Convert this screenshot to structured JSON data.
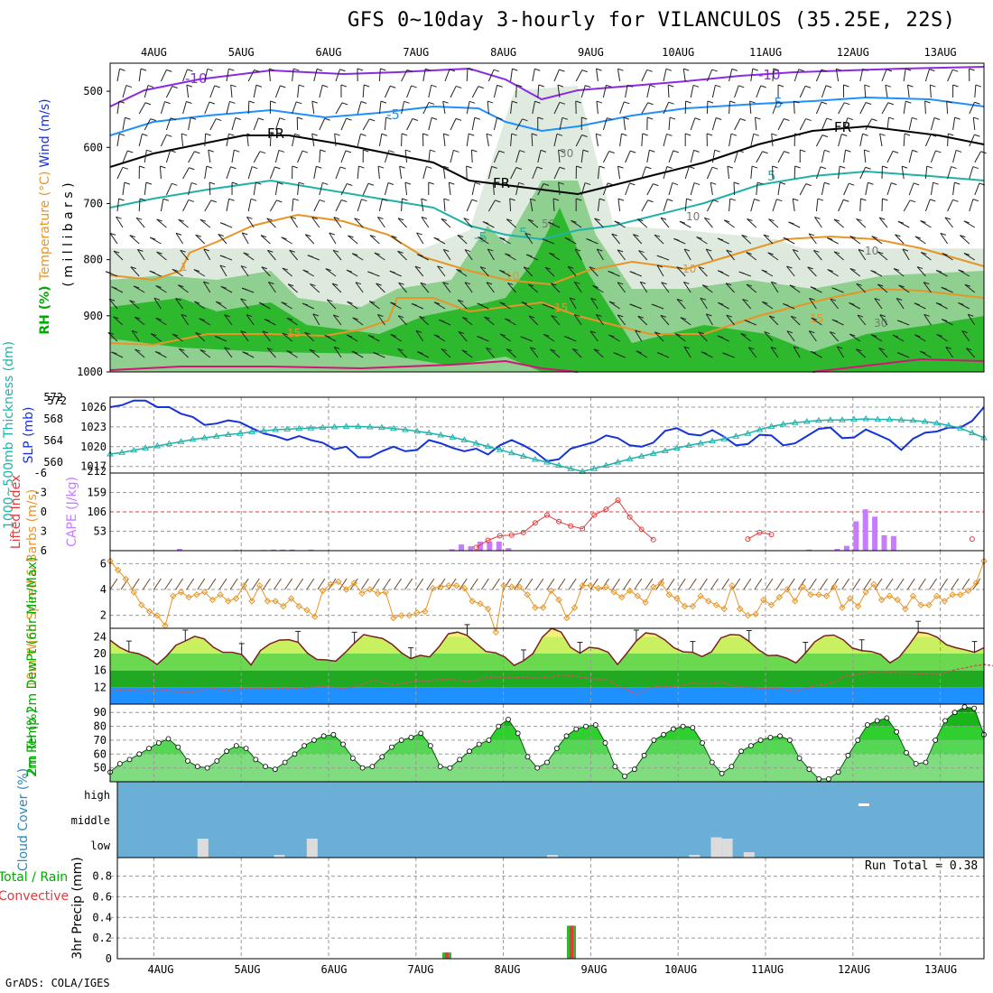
{
  "title": "GFS 0~10day 3-hourly for VILANCULOS (35.25E, 22S)",
  "credit": "GrADS: COLA/IGES",
  "run_total": "Run Total = 0.38",
  "colors": {
    "rh_dark": "#2eb82e",
    "rh_mid": "#8fcf8f",
    "rh_light": "#dde9dd",
    "temp_purple": "#8a2be2",
    "temp_blue": "#1e90ff",
    "temp_teal": "#20b2aa",
    "temp_orange": "#e69526",
    "temp_magenta": "#d4147a",
    "slp": "#1533d6",
    "thickness": "#20b2aa",
    "cape": "#c77bff",
    "lifted": "#e23b3b",
    "wind10": "#e69526",
    "cloud_bg": "#6baed6",
    "cloud_bar": "#dcdcdc"
  },
  "chart_data": [
    {
      "panel": "upper-air",
      "type": "heatmap",
      "x_ticks": [
        "4AUG",
        "5AUG",
        "6AUG",
        "7AUG",
        "8AUG",
        "9AUG",
        "10AUG",
        "11AUG",
        "12AUG",
        "13AUG"
      ],
      "ylabel_parts": [
        "RH (%)",
        "Temperature (°C)",
        "Wind (m/s)"
      ],
      "ylabel2": "( m i l l i b a r s )",
      "y_ticks": [
        "500",
        "600",
        "700",
        "800",
        "900",
        "1000"
      ],
      "contour_labels": [
        "-10",
        "-10",
        "-5",
        "-5",
        "FR",
        "FR",
        "FR",
        "-5",
        "5",
        "5",
        "10",
        "10",
        "15",
        "15",
        "15",
        "1",
        "30",
        "50",
        "10",
        "10",
        "30"
      ]
    },
    {
      "panel": "pressure",
      "type": "line",
      "ylabel_left": "1000~500mb Thickness (dm)",
      "ylabel_right": "SLP (mb)",
      "y_ticks_left": [
        "572",
        "568",
        "564",
        "560"
      ],
      "y_ticks_right": [
        "1026",
        "1023",
        "1020",
        "1017"
      ],
      "thickness_ylim": [
        558,
        572
      ],
      "slp_ylim": [
        1016,
        1027.5
      ],
      "slp": [
        1026,
        1026.3,
        1027,
        1027,
        1026,
        1026,
        1025,
        1024.5,
        1023.3,
        1023.5,
        1024,
        1023.7,
        1022.8,
        1022,
        1021.6,
        1021,
        1021.6,
        1021,
        1020.6,
        1019.6,
        1020,
        1018.4,
        1018.4,
        1019.3,
        1020,
        1019.3,
        1019.5,
        1021,
        1020.5,
        1019.8,
        1019.3,
        1019.7,
        1018.8,
        1020.2,
        1021,
        1020.2,
        1019.2,
        1017.8,
        1018.1,
        1019.7,
        1020.2,
        1020.7,
        1021.7,
        1021.3,
        1020.2,
        1020,
        1020.6,
        1022.4,
        1022.8,
        1021.9,
        1021.7,
        1022.5,
        1021.5,
        1020.2,
        1020.4,
        1021.8,
        1021.7,
        1020.2,
        1020.5,
        1021.6,
        1022.7,
        1022.9,
        1021.3,
        1021.4,
        1022.6,
        1021.8,
        1021,
        1019.5,
        1021.2,
        1022.1,
        1022.3,
        1022.9,
        1022.9,
        1023.9,
        1026
      ],
      "thickness": [
        561.5,
        561.8,
        562.2,
        562.6,
        563,
        563.4,
        563.8,
        564.2,
        564.5,
        564.8,
        565.1,
        565.3,
        565.6,
        565.8,
        566,
        566.1,
        566.2,
        566.3,
        566.4,
        566.5,
        566.6,
        566.6,
        566.5,
        566.4,
        566.2,
        566,
        565.7,
        565.4,
        565,
        564.6,
        564.1,
        563.5,
        562.9,
        562.3,
        561.7,
        561.1,
        560.5,
        560,
        559.4,
        558.8,
        558.3,
        558.8,
        559.4,
        560,
        560.6,
        561.1,
        561.6,
        562.1,
        562.6,
        563.1,
        563.5,
        563.9,
        564.3,
        564.8,
        565.3,
        566,
        566.6,
        567,
        567.3,
        567.5,
        567.7,
        567.8,
        567.8,
        567.9,
        568,
        567.9,
        567.9,
        567.8,
        567.7,
        567.5,
        567.2,
        566.8,
        566.3,
        565.4,
        564.5
      ]
    },
    {
      "panel": "stability",
      "type": "bar",
      "ylabel_left": "Lifted Index",
      "ylabel_right": "CAPE (J/kg)",
      "y_ticks_left": [
        "-6",
        "-3",
        "0",
        "3",
        "6"
      ],
      "y_ticks_right": [
        "159",
        "106",
        "53"
      ],
      "cape_ylim": [
        0,
        212
      ],
      "lifted_ylim": [
        -6,
        6
      ],
      "cape": [
        0,
        0,
        0,
        0,
        0,
        0,
        0,
        5,
        0,
        0,
        0,
        0,
        0,
        2,
        0,
        0,
        2,
        3,
        3,
        3,
        1,
        3,
        0,
        0,
        0,
        0,
        0,
        0,
        0,
        0,
        0,
        0,
        0,
        1,
        0,
        0,
        4,
        17,
        12,
        25,
        25,
        25,
        7,
        0,
        0,
        0,
        0,
        0,
        0,
        0,
        0,
        0,
        0,
        0,
        0,
        0,
        0,
        0,
        0,
        0,
        0,
        0,
        0,
        0,
        0,
        0,
        0,
        0,
        0,
        0,
        0,
        0,
        0,
        0,
        3,
        1,
        0,
        5,
        13,
        80,
        113,
        93,
        42,
        40,
        0,
        0,
        0,
        0,
        0,
        0,
        0,
        0,
        0
      ],
      "lifted": [
        null,
        null,
        null,
        null,
        null,
        null,
        null,
        null,
        null,
        null,
        null,
        null,
        null,
        null,
        null,
        null,
        null,
        null,
        null,
        null,
        null,
        null,
        null,
        null,
        null,
        null,
        null,
        null,
        null,
        null,
        null,
        5.5,
        4.4,
        3.7,
        3.6,
        3.2,
        1.7,
        0.5,
        1.5,
        2.2,
        2.6,
        0.5,
        -0.4,
        -1.8,
        0.8,
        2.7,
        4.3,
        null,
        null,
        null,
        null,
        null,
        null,
        null,
        4.2,
        3.2,
        3.5,
        null,
        null,
        null,
        null,
        null,
        null,
        null,
        null,
        null,
        null,
        null,
        null,
        null,
        null,
        null,
        null,
        4.2,
        null
      ]
    },
    {
      "panel": "wind10m",
      "type": "line",
      "ylabel": "10m Wind Speed & Barbs (m/s)",
      "y_ticks": [
        "6",
        "4",
        "2"
      ],
      "ylim": [
        1,
        7
      ],
      "values": [
        6.2,
        5.5,
        4.8,
        3.8,
        2.8,
        2.3,
        2,
        1.2,
        3.5,
        3.8,
        3.4,
        3.6,
        3.8,
        3.2,
        3.6,
        3.1,
        3.3,
        4.3,
        3.1,
        4.3,
        3.1,
        3.1,
        2.7,
        3.3,
        2.7,
        2.4,
        1.9,
        3.9,
        4.4,
        4.6,
        4,
        4.5,
        3.7,
        4,
        3.7,
        3.8,
        1.8,
        2,
        2,
        2.2,
        2.3,
        4.1,
        4.2,
        4.3,
        4.3,
        4.1,
        3.1,
        2.9,
        2.5,
        0.7,
        4.3,
        4.2,
        4.2,
        3.6,
        2.6,
        2.6,
        3.9,
        3.2,
        1.8,
        2.6,
        4.3,
        4.3,
        4.1,
        4.2,
        3.8,
        3.4,
        3.9,
        3.5,
        3,
        4.2,
        4.5,
        3.6,
        3.3,
        2.7,
        2.7,
        3.5,
        3.1,
        2.8,
        2.5,
        4.3,
        2.5,
        2,
        2.1,
        3.2,
        2.8,
        3.4,
        4,
        3.1,
        4.2,
        3.6,
        3.6,
        3.5,
        4.2,
        2.6,
        3.3,
        2.7,
        3.8,
        4.4,
        3.2,
        3.5,
        3.2,
        2.5,
        3.5,
        2.8,
        2.8,
        3.5,
        3.1,
        3.6,
        3.6,
        3.9,
        4.5,
        6.2
      ]
    },
    {
      "panel": "temperature",
      "type": "area",
      "ylabel": "2m Temp 2m DewPt (6hr Min/Max)",
      "y_ticks": [
        "24",
        "20",
        "16",
        "12"
      ],
      "ylim": [
        8,
        26
      ],
      "temp": [
        23.2,
        21.5,
        20.4,
        20,
        19,
        17.4,
        19.4,
        22,
        23,
        24.1,
        23.5,
        21.5,
        20.3,
        20.3,
        19.8,
        17.3,
        20.7,
        22.3,
        23.2,
        23.3,
        22.7,
        20.1,
        18.6,
        18.5,
        18.2,
        20.2,
        22.5,
        24.5,
        24,
        23.6,
        22.2,
        20.2,
        18.8,
        19.6,
        19.2,
        21.6,
        24.7,
        25.1,
        24.3,
        22.4,
        20.5,
        20.2,
        19.2,
        17.2,
        18.3,
        20,
        23.9,
        26,
        25.1,
        21.5,
        20.1,
        21.5,
        21.2,
        20.3,
        17.4,
        20.1,
        23,
        24.9,
        24.6,
        23.3,
        21.4,
        20.4,
        20.3,
        19.3,
        20.4,
        23.7,
        24.5,
        24.4,
        22.9,
        20.9,
        19.5,
        19.6,
        18.9,
        17.8,
        20.1,
        22.8,
        24.2,
        24.4,
        23.3,
        21.3,
        20.7,
        20.5,
        19.8,
        17.8,
        19.2,
        22,
        25.1,
        24.8,
        23.9,
        22.1,
        21.4,
        20.9,
        20.3,
        21.4
      ],
      "dewpt": [
        11,
        11.3,
        11.4,
        11.1,
        11.1,
        11.5,
        11.3,
        11,
        10.9,
        11,
        11.5,
        11.7,
        11.4,
        11.4,
        11.7,
        11.7,
        11.8,
        11.8,
        11.7,
        11.7,
        11.8,
        11.9,
        12.2,
        12.2,
        11.9,
        11.8,
        12.2,
        12.8,
        13.8,
        13.2,
        12.5,
        12.9,
        13.3,
        13.5,
        13.5,
        13.9,
        13.9,
        13.7,
        13.4,
        13.7,
        14.3,
        14.4,
        14.3,
        14.3,
        14.4,
        14.2,
        14.2,
        14.5,
        14.9,
        14.8,
        14.4,
        14.2,
        13.9,
        13.7,
        12.5,
        11.5,
        10.3,
        11.3,
        12.2,
        12.1,
        12.2,
        12.5,
        13,
        12.8,
        12.9,
        13.4,
        12.5,
        12.2,
        12,
        11.8,
        11.7,
        11.7,
        11.4,
        11,
        11.7,
        12.4,
        12.6,
        13.2,
        14.5,
        14.9,
        15.3,
        15.6,
        15.8,
        15.6,
        15.4,
        15.4,
        15.2,
        15.3,
        15.2,
        15.6,
        16.2,
        16.6,
        17.1,
        17.4,
        17.1
      ]
    },
    {
      "panel": "humidity",
      "type": "area",
      "ylabel": "2m RH (%)",
      "y_ticks": [
        "90",
        "80",
        "70",
        "60",
        "50"
      ],
      "ylim": [
        40,
        96
      ],
      "values": [
        47,
        53,
        56,
        60,
        64,
        68,
        71,
        65,
        55,
        51,
        50,
        55,
        62,
        66,
        64,
        56,
        51,
        49,
        54,
        60,
        66,
        70,
        73,
        74,
        67,
        57,
        50,
        51,
        58,
        65,
        70,
        72,
        75,
        66,
        51,
        50,
        56,
        62,
        67,
        70,
        80,
        85,
        75,
        58,
        50,
        54,
        64,
        73,
        78,
        80,
        81,
        68,
        51,
        44,
        49,
        59,
        70,
        74,
        78,
        80,
        79,
        68,
        54,
        46,
        51,
        62,
        66,
        70,
        72,
        73,
        70,
        57,
        49,
        42,
        42,
        47,
        59,
        70,
        81,
        84,
        86,
        76,
        61,
        53,
        54,
        70,
        84,
        90,
        94,
        93,
        74
      ]
    },
    {
      "panel": "cloud",
      "type": "bar",
      "ylabel": "Cloud Cover (%)",
      "y_ticks": [
        "high",
        "middle",
        "low"
      ],
      "high_bars": [
        {
          "x": 68.5,
          "value": 20
        }
      ],
      "low_bars": [
        {
          "x": 8,
          "value": 70
        },
        {
          "x": 15,
          "value": 10
        },
        {
          "x": 18,
          "value": 70
        },
        {
          "x": 40,
          "value": 10
        },
        {
          "x": 53,
          "value": 10
        },
        {
          "x": 55,
          "value": 75
        },
        {
          "x": 56,
          "value": 70
        },
        {
          "x": 58,
          "value": 20
        }
      ]
    },
    {
      "panel": "precip",
      "type": "bar",
      "ylabel_left": "Total / Rain",
      "ylabel_left2": "Convective",
      "ylabel": "3hr Precip (mm)",
      "y_ticks": [
        "0.8",
        "0.6",
        "0.4",
        "0.2",
        "0"
      ],
      "ylim": [
        0,
        0.98
      ],
      "bars": [
        {
          "x": 30,
          "total": 0.06,
          "convective": 0.06
        },
        {
          "x": 41.5,
          "total": 0.32,
          "convective": 0.32
        }
      ]
    }
  ]
}
